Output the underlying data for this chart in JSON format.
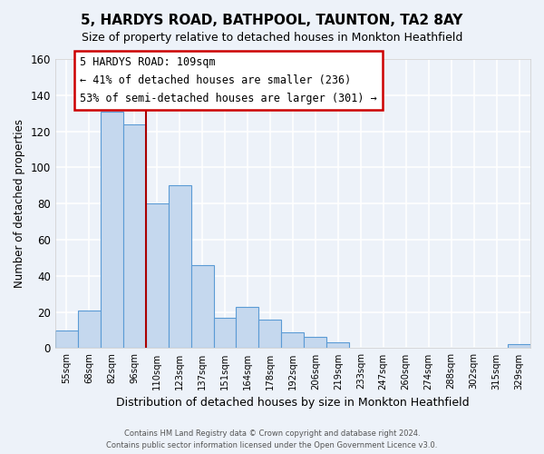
{
  "title": "5, HARDYS ROAD, BATHPOOL, TAUNTON, TA2 8AY",
  "subtitle": "Size of property relative to detached houses in Monkton Heathfield",
  "xlabel": "Distribution of detached houses by size in Monkton Heathfield",
  "ylabel": "Number of detached properties",
  "bar_labels": [
    "55sqm",
    "68sqm",
    "82sqm",
    "96sqm",
    "110sqm",
    "123sqm",
    "137sqm",
    "151sqm",
    "164sqm",
    "178sqm",
    "192sqm",
    "206sqm",
    "219sqm",
    "233sqm",
    "247sqm",
    "260sqm",
    "274sqm",
    "288sqm",
    "302sqm",
    "315sqm",
    "329sqm"
  ],
  "bar_values": [
    10,
    21,
    131,
    124,
    80,
    90,
    46,
    17,
    23,
    16,
    9,
    6,
    3,
    0,
    0,
    0,
    0,
    0,
    0,
    0,
    2
  ],
  "bar_color": "#c5d8ee",
  "bar_edge_color": "#5b9bd5",
  "vline_color": "#aa0000",
  "ylim": [
    0,
    160
  ],
  "yticks": [
    0,
    20,
    40,
    60,
    80,
    100,
    120,
    140,
    160
  ],
  "annotation_title": "5 HARDYS ROAD: 109sqm",
  "annotation_line1": "← 41% of detached houses are smaller (236)",
  "annotation_line2": "53% of semi-detached houses are larger (301) →",
  "annotation_box_color": "#ffffff",
  "annotation_box_edge": "#cc0000",
  "footer_line1": "Contains HM Land Registry data © Crown copyright and database right 2024.",
  "footer_line2": "Contains public sector information licensed under the Open Government Licence v3.0.",
  "bg_color": "#edf2f9",
  "plot_bg_color": "#edf2f9",
  "grid_color": "#ffffff"
}
